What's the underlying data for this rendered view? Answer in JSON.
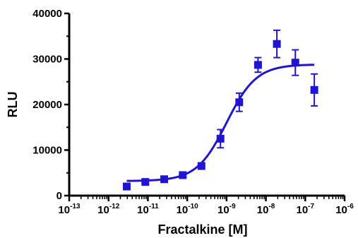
{
  "chart_data": {
    "type": "scatter",
    "xlabel": "Fractalkine [M]",
    "ylabel": "RLU",
    "x_scale": "log",
    "xlim": [
      1e-13,
      1e-06
    ],
    "ylim": [
      0,
      40000
    ],
    "x_ticks": [
      {
        "base": "10",
        "exp": "-13",
        "value": 1e-13
      },
      {
        "base": "10",
        "exp": "-12",
        "value": 1e-12
      },
      {
        "base": "10",
        "exp": "-11",
        "value": 1e-11
      },
      {
        "base": "10",
        "exp": "-10",
        "value": 1e-10
      },
      {
        "base": "10",
        "exp": "-9",
        "value": 1e-09
      },
      {
        "base": "10",
        "exp": "-8",
        "value": 1e-08
      },
      {
        "base": "10",
        "exp": "-7",
        "value": 1e-07
      },
      {
        "base": "10",
        "exp": "-6",
        "value": 1e-06
      }
    ],
    "y_ticks": [
      {
        "label": "0",
        "value": 0
      },
      {
        "label": "10000",
        "value": 10000
      },
      {
        "label": "20000",
        "value": 20000
      },
      {
        "label": "30000",
        "value": 30000
      },
      {
        "label": "40000",
        "value": 40000
      }
    ],
    "grid": false,
    "series": [
      {
        "color": "#1f14d6",
        "marker": "square",
        "points": [
          {
            "x": 2.9e-12,
            "y": 2000,
            "err": 400
          },
          {
            "x": 8.6e-12,
            "y": 3000,
            "err": 300
          },
          {
            "x": 2.6e-11,
            "y": 3600,
            "err": 300
          },
          {
            "x": 7.7e-11,
            "y": 4500,
            "err": 400
          },
          {
            "x": 2.3e-10,
            "y": 6500,
            "err": 500
          },
          {
            "x": 7e-10,
            "y": 12500,
            "err": 2000
          },
          {
            "x": 2.1e-09,
            "y": 20500,
            "err": 2000
          },
          {
            "x": 6.3e-09,
            "y": 28700,
            "err": 1600
          },
          {
            "x": 1.9e-08,
            "y": 33300,
            "err": 3000
          },
          {
            "x": 5.6e-08,
            "y": 29200,
            "err": 2800
          },
          {
            "x": 1.7e-07,
            "y": 23200,
            "err": 3500
          }
        ],
        "fit": {
          "model": "sigmoidal dose-response",
          "bottom": 3200,
          "top": 28800,
          "log_ec50": -9.0,
          "hill": 1.15,
          "x_range": [
            2.9e-12,
            1.7e-07
          ]
        }
      }
    ]
  }
}
